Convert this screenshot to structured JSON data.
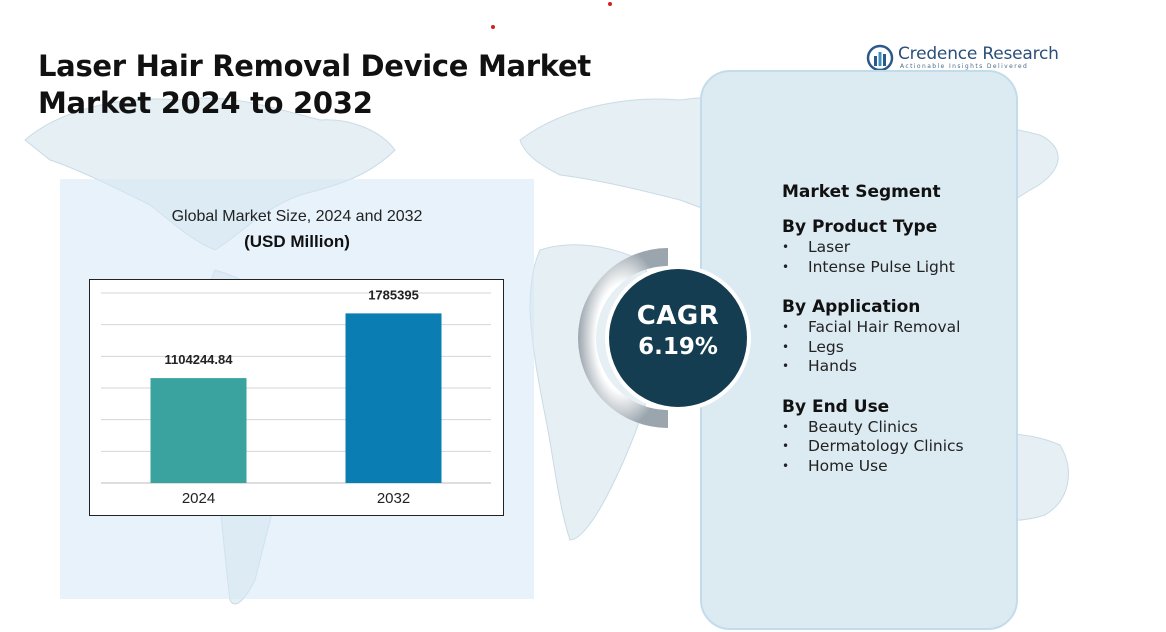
{
  "title_lines": [
    "Laser Hair Removal Device Market",
    "Market 2024 to 2032"
  ],
  "logo": {
    "name": "Credence Research",
    "tagline": "Actionable Insights Delivered"
  },
  "chart_data": {
    "type": "bar",
    "title": "Global Market Size, 2024 and 2032",
    "unit_label": "(USD Million)",
    "categories": [
      "2024",
      "2032"
    ],
    "values": [
      1104244.84,
      1785395
    ],
    "value_labels": [
      "1104244.84",
      "1785395"
    ],
    "colors": [
      "#3aa39f",
      "#0a7db3"
    ],
    "ylim": [
      0,
      2000000
    ],
    "grid": true,
    "legend": "none"
  },
  "cagr": {
    "label": "CAGR",
    "value": "6.19%"
  },
  "segments": {
    "heading": "Market Segment",
    "groups": [
      {
        "title": "By Product Type",
        "items": [
          "Laser",
          "Intense Pulse Light"
        ]
      },
      {
        "title": "By Application",
        "items": [
          "Facial Hair Removal",
          "Legs",
          "Hands"
        ]
      },
      {
        "title": "By End Use",
        "items": [
          "Beauty Clinics",
          "Dermatology Clinics",
          "Home Use"
        ]
      }
    ]
  },
  "colors": {
    "title": "#111111",
    "cagr_circle": "#143d52",
    "panel": "#dceaf2",
    "map": "#cfe0ea"
  }
}
